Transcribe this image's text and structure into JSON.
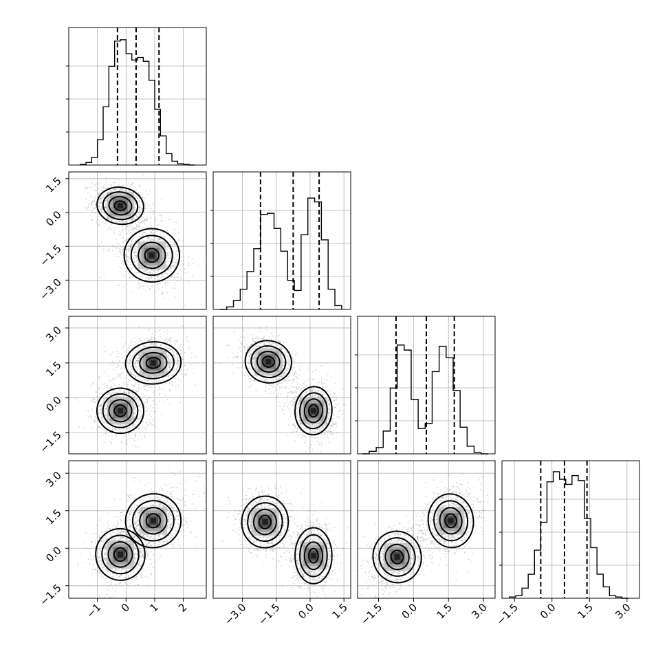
{
  "chart_data": {
    "type": "corner",
    "parameters": 4,
    "diagonal": [
      {
        "type": "histogram",
        "xlim": [
          -2.0,
          2.8
        ],
        "bins": [
          -1.6,
          -1.4,
          -1.2,
          -1.0,
          -0.8,
          -0.6,
          -0.4,
          -0.2,
          0.0,
          0.2,
          0.4,
          0.6,
          0.8,
          1.0,
          1.2,
          1.4,
          1.6,
          1.8,
          2.0,
          2.2,
          2.4
        ],
        "counts": [
          0.005,
          0.02,
          0.06,
          0.2,
          0.46,
          0.78,
          0.98,
          0.99,
          0.88,
          0.83,
          0.85,
          0.82,
          0.67,
          0.44,
          0.23,
          0.09,
          0.03,
          0.01,
          0.005,
          0.0
        ],
        "quantiles": [
          -0.3,
          0.35,
          1.15
        ],
        "ygrid": [
          0.3,
          0.6,
          0.9
        ]
      },
      {
        "type": "histogram",
        "xlim": [
          -4.3,
          1.8
        ],
        "bins": [
          -4.0,
          -3.7,
          -3.4,
          -3.1,
          -2.8,
          -2.5,
          -2.2,
          -1.9,
          -1.6,
          -1.3,
          -1.0,
          -0.7,
          -0.4,
          -0.1,
          0.2,
          0.5,
          0.8,
          1.1,
          1.4
        ],
        "counts": [
          0.0,
          0.02,
          0.07,
          0.16,
          0.3,
          0.48,
          0.75,
          0.76,
          0.64,
          0.46,
          0.23,
          0.15,
          0.59,
          0.88,
          0.85,
          0.55,
          0.16,
          0.03
        ],
        "quantiles": [
          -2.2,
          -0.75,
          0.4
        ],
        "ygrid": [
          0.3,
          0.6,
          0.9
        ]
      },
      {
        "type": "histogram",
        "xlim": [
          -2.4,
          3.5
        ],
        "bins": [
          -2.2,
          -1.9,
          -1.6,
          -1.3,
          -1.0,
          -0.7,
          -0.4,
          -0.1,
          0.2,
          0.5,
          0.8,
          1.1,
          1.4,
          1.7,
          2.0,
          2.3,
          2.6,
          2.9,
          3.2
        ],
        "counts": [
          0.0,
          0.02,
          0.05,
          0.18,
          0.52,
          0.86,
          0.82,
          0.43,
          0.2,
          0.24,
          0.65,
          0.85,
          0.76,
          0.5,
          0.21,
          0.06,
          0.01,
          0.0
        ],
        "quantiles": [
          -0.75,
          0.55,
          1.75
        ],
        "ygrid": [
          0.3,
          0.6,
          0.9
        ]
      },
      {
        "type": "histogram",
        "xlim": [
          -2.0,
          3.5
        ],
        "bins": [
          -1.7,
          -1.45,
          -1.2,
          -0.95,
          -0.7,
          -0.45,
          -0.2,
          0.05,
          0.3,
          0.55,
          0.8,
          1.05,
          1.3,
          1.55,
          1.8,
          2.05,
          2.3,
          2.55,
          2.8,
          3.05
        ],
        "counts": [
          0.01,
          0.02,
          0.08,
          0.19,
          0.38,
          0.6,
          0.92,
          1.0,
          0.94,
          0.9,
          0.97,
          0.93,
          0.63,
          0.4,
          0.19,
          0.09,
          0.02,
          0.01,
          0.0
        ],
        "quantiles": [
          -0.45,
          0.5,
          1.4
        ],
        "ygrid": [
          0.3,
          0.6,
          0.9
        ]
      }
    ],
    "off_diagonal": [
      {
        "row": 1,
        "col": 0,
        "type": "scatter-contour",
        "xlim": [
          -2.0,
          2.8
        ],
        "ylim": [
          -4.3,
          1.8
        ],
        "modes": [
          {
            "x": -0.2,
            "y": 0.3,
            "sx": 0.38,
            "sy": 0.38,
            "rho": -0.25
          },
          {
            "x": 0.9,
            "y": -1.9,
            "sx": 0.45,
            "sy": 0.55,
            "rho": -0.2
          }
        ]
      },
      {
        "row": 2,
        "col": 0,
        "type": "scatter-contour",
        "xlim": [
          -2.0,
          2.8
        ],
        "ylim": [
          -2.4,
          3.5
        ],
        "modes": [
          {
            "x": -0.2,
            "y": -0.55,
            "sx": 0.38,
            "sy": 0.45,
            "rho": -0.15
          },
          {
            "x": 0.95,
            "y": 1.5,
            "sx": 0.45,
            "sy": 0.42,
            "rho": 0.1
          }
        ]
      },
      {
        "row": 2,
        "col": 1,
        "type": "scatter-contour",
        "xlim": [
          -4.3,
          1.8
        ],
        "ylim": [
          -2.4,
          3.5
        ],
        "modes": [
          {
            "x": -1.85,
            "y": 1.55,
            "sx": 0.48,
            "sy": 0.42,
            "rho": -0.35
          },
          {
            "x": 0.15,
            "y": -0.55,
            "sx": 0.38,
            "sy": 0.48,
            "rho": -0.1
          }
        ]
      },
      {
        "row": 3,
        "col": 0,
        "type": "scatter-contour",
        "xlim": [
          -2.0,
          2.8
        ],
        "ylim": [
          -2.0,
          3.5
        ],
        "modes": [
          {
            "x": -0.2,
            "y": -0.25,
            "sx": 0.4,
            "sy": 0.48,
            "rho": 0.15
          },
          {
            "x": 0.95,
            "y": 1.1,
            "sx": 0.45,
            "sy": 0.5,
            "rho": 0.35
          }
        ]
      },
      {
        "row": 3,
        "col": 1,
        "type": "scatter-contour",
        "xlim": [
          -4.3,
          1.8
        ],
        "ylim": [
          -2.0,
          3.5
        ],
        "modes": [
          {
            "x": -2.0,
            "y": 1.05,
            "sx": 0.48,
            "sy": 0.48,
            "rho": -0.1
          },
          {
            "x": 0.15,
            "y": -0.3,
            "sx": 0.38,
            "sy": 0.52,
            "rho": 0.0
          }
        ]
      },
      {
        "row": 3,
        "col": 2,
        "type": "scatter-contour",
        "xlim": [
          -2.4,
          3.5
        ],
        "ylim": [
          -2.0,
          3.5
        ],
        "modes": [
          {
            "x": -0.7,
            "y": -0.35,
            "sx": 0.48,
            "sy": 0.48,
            "rho": 0.35
          },
          {
            "x": 1.6,
            "y": 1.1,
            "sx": 0.45,
            "sy": 0.5,
            "rho": 0.2
          }
        ]
      }
    ],
    "x_tick_labels": [
      [
        "−1",
        "0",
        "1",
        "2"
      ],
      [
        "−3.0",
        "−1.5",
        "0.0",
        "1.5"
      ],
      [
        "−1.5",
        "0.0",
        "1.5",
        "3.0"
      ],
      [
        "−1.5",
        "0.0",
        "1.5",
        "3.0"
      ]
    ],
    "x_tick_values": [
      [
        -1,
        0,
        1,
        2
      ],
      [
        -3.0,
        -1.5,
        0.0,
        1.5
      ],
      [
        -1.5,
        0.0,
        1.5,
        3.0
      ],
      [
        -1.5,
        0.0,
        1.5,
        3.0
      ]
    ],
    "y_tick_labels": [
      null,
      [
        "1.5",
        "0.0",
        "−1.5",
        "−3.0"
      ],
      [
        "3.0",
        "1.5",
        "0.0",
        "−1.5"
      ],
      [
        "3.0",
        "1.5",
        "0.0",
        "−1.5"
      ]
    ],
    "y_tick_values": [
      null,
      [
        1.5,
        0.0,
        -1.5,
        -3.0
      ],
      [
        3.0,
        1.5,
        0.0,
        -1.5
      ],
      [
        3.0,
        1.5,
        0.0,
        -1.5
      ]
    ],
    "colors": {
      "line": "#000000",
      "grid": "#b0b0b0",
      "points": "#808080"
    }
  }
}
